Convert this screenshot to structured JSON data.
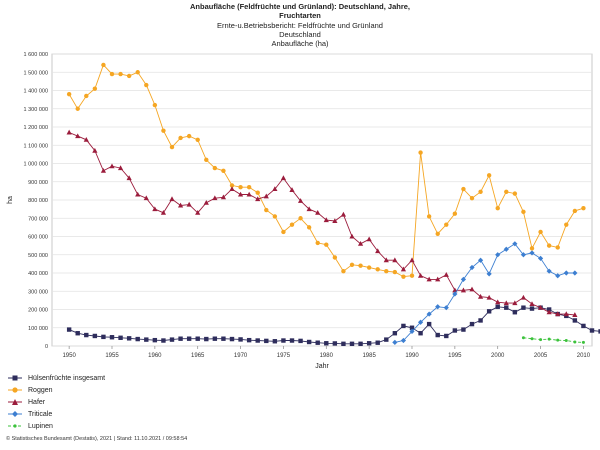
{
  "header": {
    "title_line1": "Anbaufläche (Feldfrüchte und Grünland): Deutschland, Jahre,",
    "title_line2": "Fruchtarten",
    "subtitle_line1": "Ernte-u.Betriebsbericht: Feldfrüchte und Grünland",
    "subtitle_line2": "Deutschland",
    "subtitle_line3": "Anbaufläche (ha)"
  },
  "footer": {
    "source": "© Statistisches Bundesamt (Destatis), 2021 | Stand: 11.10.2021 / 09:58:54"
  },
  "chart_data": {
    "type": "line",
    "xlabel": "Jahr",
    "ylabel": "ha",
    "xlim": [
      1948,
      2011
    ],
    "ylim": [
      0,
      1600000
    ],
    "x_ticks": [
      1950,
      1955,
      1960,
      1965,
      1970,
      1975,
      1980,
      1985,
      1990,
      1995,
      2000,
      2005,
      2010
    ],
    "y_ticks": [
      0,
      100000,
      200000,
      300000,
      400000,
      500000,
      600000,
      700000,
      800000,
      900000,
      1000000,
      1100000,
      1200000,
      1300000,
      1400000,
      1500000,
      1600000
    ],
    "y_tick_labels": [
      "0",
      "100 000",
      "200 000",
      "300 000",
      "400 000",
      "500 000",
      "600 000",
      "700 000",
      "800 000",
      "900 000",
      "1 000 000",
      "1 100 000",
      "1 200 000",
      "1 300 000",
      "1 400 000",
      "1 500 000",
      "1 600 000"
    ],
    "grid": true,
    "series": [
      {
        "name": "Hülsenfrüchte insgesamt",
        "color": "#2e2d5c",
        "marker": "square",
        "start": 1950,
        "values": [
          90000,
          70000,
          60000,
          55000,
          50000,
          48000,
          45000,
          42000,
          38000,
          35000,
          32000,
          30000,
          35000,
          40000,
          40000,
          40000,
          38000,
          40000,
          40000,
          38000,
          36000,
          32000,
          30000,
          28000,
          26000,
          30000,
          30000,
          28000,
          22000,
          18000,
          15000,
          14000,
          12000,
          12000,
          12000,
          15000,
          18000,
          35000,
          70000,
          110000,
          100000,
          70000,
          120000,
          60000,
          55000,
          85000,
          90000,
          120000,
          140000,
          190000,
          215000,
          210000,
          185000,
          210000,
          205000,
          210000,
          200000,
          175000,
          165000,
          140000,
          110000,
          85000,
          80000
        ]
      },
      {
        "name": "Roggen",
        "color": "#f5a623",
        "marker": "circle",
        "start": 1950,
        "values": [
          1380000,
          1300000,
          1370000,
          1410000,
          1540000,
          1490000,
          1490000,
          1480000,
          1500000,
          1430000,
          1320000,
          1180000,
          1090000,
          1140000,
          1150000,
          1130000,
          1020000,
          975000,
          960000,
          880000,
          870000,
          870000,
          840000,
          745000,
          710000,
          625000,
          665000,
          700000,
          650000,
          565000,
          555000,
          485000,
          410000,
          445000,
          440000,
          430000,
          420000,
          410000,
          405000,
          380000,
          385000,
          1060000,
          710000,
          615000,
          665000,
          725000,
          860000,
          810000,
          845000,
          935000,
          755000,
          845000,
          835000,
          735000,
          535000,
          625000,
          550000,
          540000,
          665000,
          740000,
          755000
        ]
      },
      {
        "name": "Hafer",
        "color": "#9b1c3c",
        "marker": "triangle",
        "start": 1950,
        "values": [
          1170000,
          1150000,
          1130000,
          1070000,
          960000,
          985000,
          975000,
          920000,
          830000,
          810000,
          750000,
          730000,
          805000,
          770000,
          775000,
          730000,
          785000,
          810000,
          815000,
          860000,
          830000,
          830000,
          805000,
          820000,
          860000,
          920000,
          855000,
          795000,
          750000,
          730000,
          690000,
          685000,
          720000,
          600000,
          560000,
          585000,
          520000,
          470000,
          470000,
          420000,
          470000,
          385000,
          365000,
          365000,
          390000,
          305000,
          305000,
          310000,
          270000,
          265000,
          240000,
          235000,
          235000,
          265000,
          230000,
          210000,
          185000,
          175000,
          175000,
          170000
        ]
      },
      {
        "name": "Triticale",
        "color": "#3d7fd1",
        "marker": "diamond",
        "start": 1988,
        "values": [
          20000,
          30000,
          80000,
          130000,
          175000,
          215000,
          210000,
          285000,
          365000,
          430000,
          470000,
          395000,
          500000,
          530000,
          560000,
          500000,
          510000,
          480000,
          410000,
          385000,
          400000,
          400000
        ]
      },
      {
        "name": "Lupinen",
        "color": "#3cc23c",
        "marker": "circle-small",
        "dashed": true,
        "start": 2003,
        "values": [
          45000,
          40000,
          35000,
          38000,
          32000,
          30000,
          22000,
          20000
        ]
      }
    ]
  }
}
